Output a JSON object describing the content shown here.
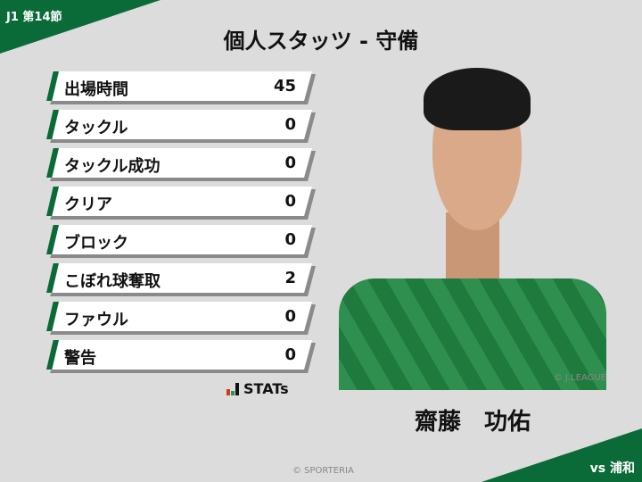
{
  "header": {
    "round": "J1 第14節",
    "title": "個人スタッツ - 守備",
    "opponent": "vs 浦和"
  },
  "stats": [
    {
      "label": "出場時間",
      "value": "45"
    },
    {
      "label": "タックル",
      "value": "0"
    },
    {
      "label": "タックル成功",
      "value": "0"
    },
    {
      "label": "クリア",
      "value": "0"
    },
    {
      "label": "ブロック",
      "value": "0"
    },
    {
      "label": "こぼれ球奪取",
      "value": "2"
    },
    {
      "label": "ファウル",
      "value": "0"
    },
    {
      "label": "警告",
      "value": "0"
    }
  ],
  "brand": {
    "stats_logo": "STATs"
  },
  "player": {
    "name": "齋藤　功佑",
    "photo_credit": "© J.LEAGUE"
  },
  "footer": {
    "credit": "© SPORTERIA"
  },
  "colors": {
    "accent": "#0a6b38",
    "background": "#dcdcdc"
  }
}
